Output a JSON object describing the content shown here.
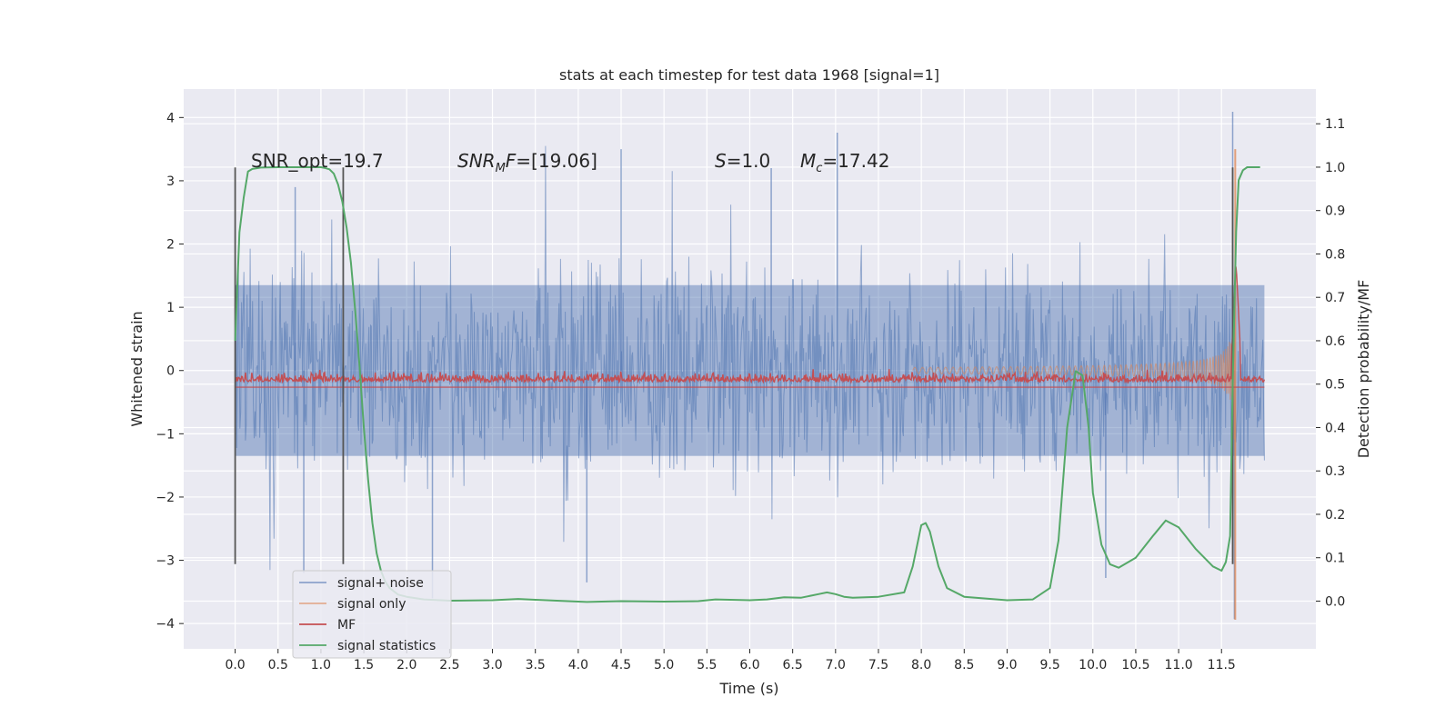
{
  "chart_data": {
    "type": "line",
    "title": "stats at each timestep for test data 1968 [signal=1]",
    "xlabel": "Time (s)",
    "ylabel": "Whitened strain",
    "y2label": "Detection probability/MF",
    "xlim": [
      -0.6,
      12.6
    ],
    "ylim": [
      -4.4,
      4.45
    ],
    "y2lim": [
      -0.11,
      1.18
    ],
    "grid": true,
    "legend_position": "lower-left",
    "x_ticks": [
      0.0,
      0.5,
      1.0,
      1.5,
      2.0,
      2.5,
      3.0,
      3.5,
      4.0,
      4.5,
      5.0,
      5.5,
      6.0,
      6.5,
      7.0,
      7.5,
      8.0,
      8.5,
      9.0,
      9.5,
      10.0,
      10.5,
      11.0,
      11.5
    ],
    "x_tick_labels": [
      "0.0",
      "0.5",
      "1.0",
      "1.5",
      "2.0",
      "2.5",
      "3.0",
      "3.5",
      "4.0",
      "4.5",
      "5.0",
      "5.5",
      "6.0",
      "6.5",
      "7.0",
      "7.5",
      "8.0",
      "8.5",
      "9.0",
      "9.5",
      "10.0",
      "10.5",
      "11.0",
      "11.5"
    ],
    "y_ticks": [
      4,
      3,
      2,
      1,
      0,
      -1,
      -2,
      -3,
      -4
    ],
    "y_tick_labels": [
      "4",
      "3",
      "2",
      "1",
      "0",
      "−1",
      "−2",
      "−3",
      "−4"
    ],
    "y2_ticks": [
      1.1,
      1.0,
      0.9,
      0.8,
      0.7,
      0.6,
      0.5,
      0.4,
      0.3,
      0.2,
      0.1,
      0.0
    ],
    "y2_tick_labels": [
      "1.1",
      "1.0",
      "0.9",
      "0.8",
      "0.7",
      "0.6",
      "0.5",
      "0.4",
      "0.3",
      "0.2",
      "0.1",
      "0.0"
    ],
    "annotations": {
      "snr_opt": "SNR_opt=19.7",
      "snr_mf_base": "SNR",
      "snr_mf_sub": "M",
      "snr_mf_rest": "F=[19.06]",
      "s_sym": "S",
      "s_val": "=1.0",
      "mc_sym": "M",
      "mc_sub": "c",
      "mc_val": "=17.42"
    },
    "vertical_markers": [
      {
        "x": 0.0,
        "y_range": [
          -3.06,
          3.21
        ]
      },
      {
        "x": 1.26,
        "y_range": [
          -3.06,
          3.21
        ]
      },
      {
        "x": 11.63,
        "y_range": [
          -3.06,
          3.21
        ]
      }
    ],
    "series": [
      {
        "name": "signal+ noise",
        "color": "#4c72b0",
        "x_range": [
          0.0,
          12.0
        ],
        "envelope": {
          "typical": 1.35,
          "peaks": [
            4.09,
            3.76,
            3.5,
            3.2,
            2.9
          ],
          "troughs": [
            -3.35,
            -3.28,
            -3.14,
            -3.93
          ]
        }
      },
      {
        "name": "signal only",
        "color": "#dd8452",
        "chirp": {
          "t_start": 7.9,
          "t_merger": 11.66,
          "amp_start": 0.05,
          "amp_merger": 1.8,
          "peak_max": 3.5,
          "peak_min": -3.94
        }
      },
      {
        "name": "MF",
        "color": "#c44e52",
        "axis": "right",
        "baseline": 0.505,
        "peak": {
          "x": 11.67,
          "y": 0.78
        }
      },
      {
        "name": "signal statistics",
        "color": "#55a868",
        "axis": "right",
        "x": [
          0.0,
          0.05,
          0.1,
          0.15,
          0.2,
          0.3,
          0.5,
          0.8,
          1.0,
          1.05,
          1.1,
          1.15,
          1.2,
          1.25,
          1.3,
          1.35,
          1.4,
          1.45,
          1.5,
          1.55,
          1.6,
          1.65,
          1.7,
          1.75,
          1.8,
          1.9,
          2.0,
          2.2,
          2.5,
          3.0,
          3.3,
          3.5,
          4.0,
          4.1,
          4.5,
          5.0,
          5.4,
          5.6,
          6.0,
          6.2,
          6.4,
          6.6,
          6.8,
          6.9,
          7.0,
          7.1,
          7.2,
          7.5,
          7.8,
          7.9,
          8.0,
          8.05,
          8.1,
          8.2,
          8.3,
          8.5,
          9.0,
          9.3,
          9.5,
          9.6,
          9.7,
          9.8,
          9.88,
          9.95,
          10.0,
          10.1,
          10.2,
          10.3,
          10.5,
          10.7,
          10.85,
          11.0,
          11.2,
          11.4,
          11.5,
          11.55,
          11.6,
          11.63,
          11.67,
          11.7,
          11.75,
          11.8,
          11.9,
          11.95
        ],
        "y": [
          0.6,
          0.85,
          0.93,
          0.99,
          0.996,
          0.999,
          1.0,
          1.0,
          1.0,
          0.998,
          0.995,
          0.985,
          0.96,
          0.92,
          0.86,
          0.78,
          0.67,
          0.54,
          0.4,
          0.28,
          0.18,
          0.11,
          0.07,
          0.045,
          0.03,
          0.015,
          0.01,
          0.004,
          0.001,
          0.002,
          0.005,
          0.003,
          -0.001,
          -0.002,
          0.0,
          -0.001,
          0.0,
          0.004,
          0.002,
          0.004,
          0.009,
          0.008,
          0.016,
          0.02,
          0.016,
          0.01,
          0.008,
          0.01,
          0.02,
          0.08,
          0.175,
          0.18,
          0.16,
          0.08,
          0.03,
          0.01,
          0.002,
          0.004,
          0.03,
          0.14,
          0.4,
          0.53,
          0.52,
          0.4,
          0.25,
          0.13,
          0.085,
          0.077,
          0.1,
          0.15,
          0.186,
          0.17,
          0.12,
          0.08,
          0.07,
          0.09,
          0.15,
          0.5,
          0.85,
          0.97,
          0.993,
          1.0,
          1.0,
          1.0
        ]
      }
    ]
  }
}
